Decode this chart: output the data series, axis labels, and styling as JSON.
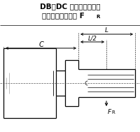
{
  "title_line1": "DB、DC 型减速器输出轴",
  "title_line2": "轴伸许用径向载荷 F",
  "title_sub": "R",
  "bg_color": "#ffffff",
  "line_color": "#000000",
  "title_fontsize": 7.5,
  "label_C": "C",
  "label_L": "L",
  "label_L2": "L/2",
  "label_FR": "F",
  "label_FR_sub": "R",
  "fig_width": 2.0,
  "fig_height": 1.89
}
